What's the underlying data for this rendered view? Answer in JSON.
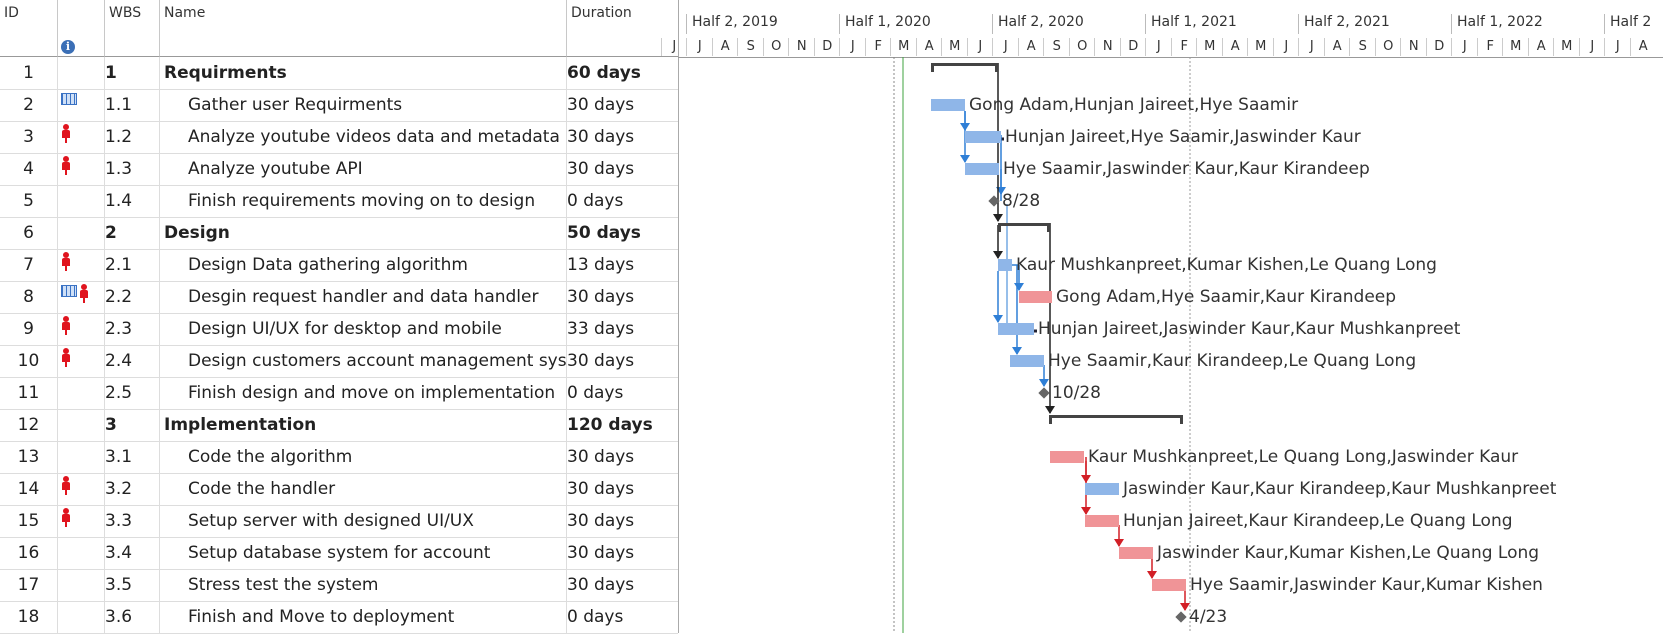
{
  "columns": {
    "id": "ID",
    "info": "i",
    "wbs": "WBS",
    "name": "Name",
    "duration": "Duration"
  },
  "timescale": {
    "halves": [
      "Half 2, 2019",
      "Half 1, 2020",
      "Half 2, 2020",
      "Half 1, 2021",
      "Half 2, 2021",
      "Half 1, 2022",
      "Half 2"
    ],
    "months": [
      "J",
      "J",
      "A",
      "S",
      "O",
      "N",
      "D",
      "J",
      "F",
      "M",
      "A",
      "M",
      "J",
      "J",
      "A",
      "S",
      "O",
      "N",
      "D",
      "J",
      "F",
      "M",
      "A",
      "M",
      "J",
      "J",
      "A",
      "S",
      "O",
      "N",
      "D",
      "J",
      "F",
      "M",
      "A",
      "M",
      "J",
      "J",
      "A"
    ]
  },
  "tasks": [
    {
      "id": "1",
      "wbs": "1",
      "name": "Requirments",
      "duration": "60 days",
      "summary": true,
      "cal": false,
      "res": false
    },
    {
      "id": "2",
      "wbs": "1.1",
      "name": "Gather user Requirments",
      "duration": "30 days",
      "summary": false,
      "cal": true,
      "res": false,
      "label": "Gong Adam,Hunjan Jaireet,Hye Saamir"
    },
    {
      "id": "3",
      "wbs": "1.2",
      "name": "Analyze youtube videos data and metadata",
      "duration": "30 days",
      "summary": false,
      "cal": false,
      "res": true,
      "label": "Hunjan Jaireet,Hye Saamir,Jaswinder Kaur"
    },
    {
      "id": "4",
      "wbs": "1.3",
      "name": "Analyze youtube API",
      "duration": "30 days",
      "summary": false,
      "cal": false,
      "res": true,
      "label": "Hye Saamir,Jaswinder Kaur,Kaur Kirandeep"
    },
    {
      "id": "5",
      "wbs": "1.4",
      "name": "Finish requirements moving on to design",
      "duration": "0 days",
      "summary": false,
      "cal": false,
      "res": false,
      "label": "8/28"
    },
    {
      "id": "6",
      "wbs": "2",
      "name": "Design",
      "duration": "50 days",
      "summary": true,
      "cal": false,
      "res": false
    },
    {
      "id": "7",
      "wbs": "2.1",
      "name": "Design Data gathering algorithm",
      "duration": "13 days",
      "summary": false,
      "cal": false,
      "res": true,
      "label": "Kaur Mushkanpreet,Kumar Kishen,Le Quang Long"
    },
    {
      "id": "8",
      "wbs": "2.2",
      "name": "Desgin request handler and data handler",
      "duration": "30 days",
      "summary": false,
      "cal": true,
      "res": true,
      "label": "Gong Adam,Hye Saamir,Kaur Kirandeep"
    },
    {
      "id": "9",
      "wbs": "2.3",
      "name": "Design UI/UX for desktop and mobile",
      "duration": "33 days",
      "summary": false,
      "cal": false,
      "res": true,
      "label": "Hunjan Jaireet,Jaswinder Kaur,Kaur Mushkanpreet"
    },
    {
      "id": "10",
      "wbs": "2.4",
      "name": "Design customers account management system",
      "duration": "30 days",
      "summary": false,
      "cal": false,
      "res": true,
      "label": "Hye Saamir,Kaur Kirandeep,Le Quang Long"
    },
    {
      "id": "11",
      "wbs": "2.5",
      "name": "Finish design and move on implementation",
      "duration": "0 days",
      "summary": false,
      "cal": false,
      "res": false,
      "label": "10/28"
    },
    {
      "id": "12",
      "wbs": "3",
      "name": "Implementation",
      "duration": "120 days",
      "summary": true,
      "cal": false,
      "res": false
    },
    {
      "id": "13",
      "wbs": "3.1",
      "name": "Code the algorithm",
      "duration": "30 days",
      "summary": false,
      "cal": false,
      "res": false,
      "label": "Kaur Mushkanpreet,Le Quang Long,Jaswinder Kaur"
    },
    {
      "id": "14",
      "wbs": "3.2",
      "name": "Code the handler",
      "duration": "30 days",
      "summary": false,
      "cal": false,
      "res": true,
      "label": "Jaswinder Kaur,Kaur Kirandeep,Kaur Mushkanpreet"
    },
    {
      "id": "15",
      "wbs": "3.3",
      "name": "Setup server with designed UI/UX",
      "duration": "30 days",
      "summary": false,
      "cal": false,
      "res": true,
      "label": "Hunjan Jaireet,Kaur Kirandeep,Le Quang Long"
    },
    {
      "id": "16",
      "wbs": "3.4",
      "name": "Setup database system for account",
      "duration": "30 days",
      "summary": false,
      "cal": false,
      "res": false,
      "label": "Jaswinder Kaur,Kumar Kishen,Le Quang Long"
    },
    {
      "id": "17",
      "wbs": "3.5",
      "name": "Stress test the system",
      "duration": "30 days",
      "summary": false,
      "cal": false,
      "res": false,
      "label": "Hye Saamir,Jaswinder Kaur,Kumar Kishen"
    },
    {
      "id": "18",
      "wbs": "3.6",
      "name": "Finish and Move to deployment",
      "duration": "0 days",
      "summary": false,
      "cal": false,
      "res": false,
      "label": "4/23"
    }
  ],
  "colors": {
    "normal_bar": "#8fb6e8",
    "critical_bar": "#f09497",
    "normal_link": "#2f7fd6",
    "critical_link": "#d21f26",
    "summary_bar": "#444444"
  }
}
